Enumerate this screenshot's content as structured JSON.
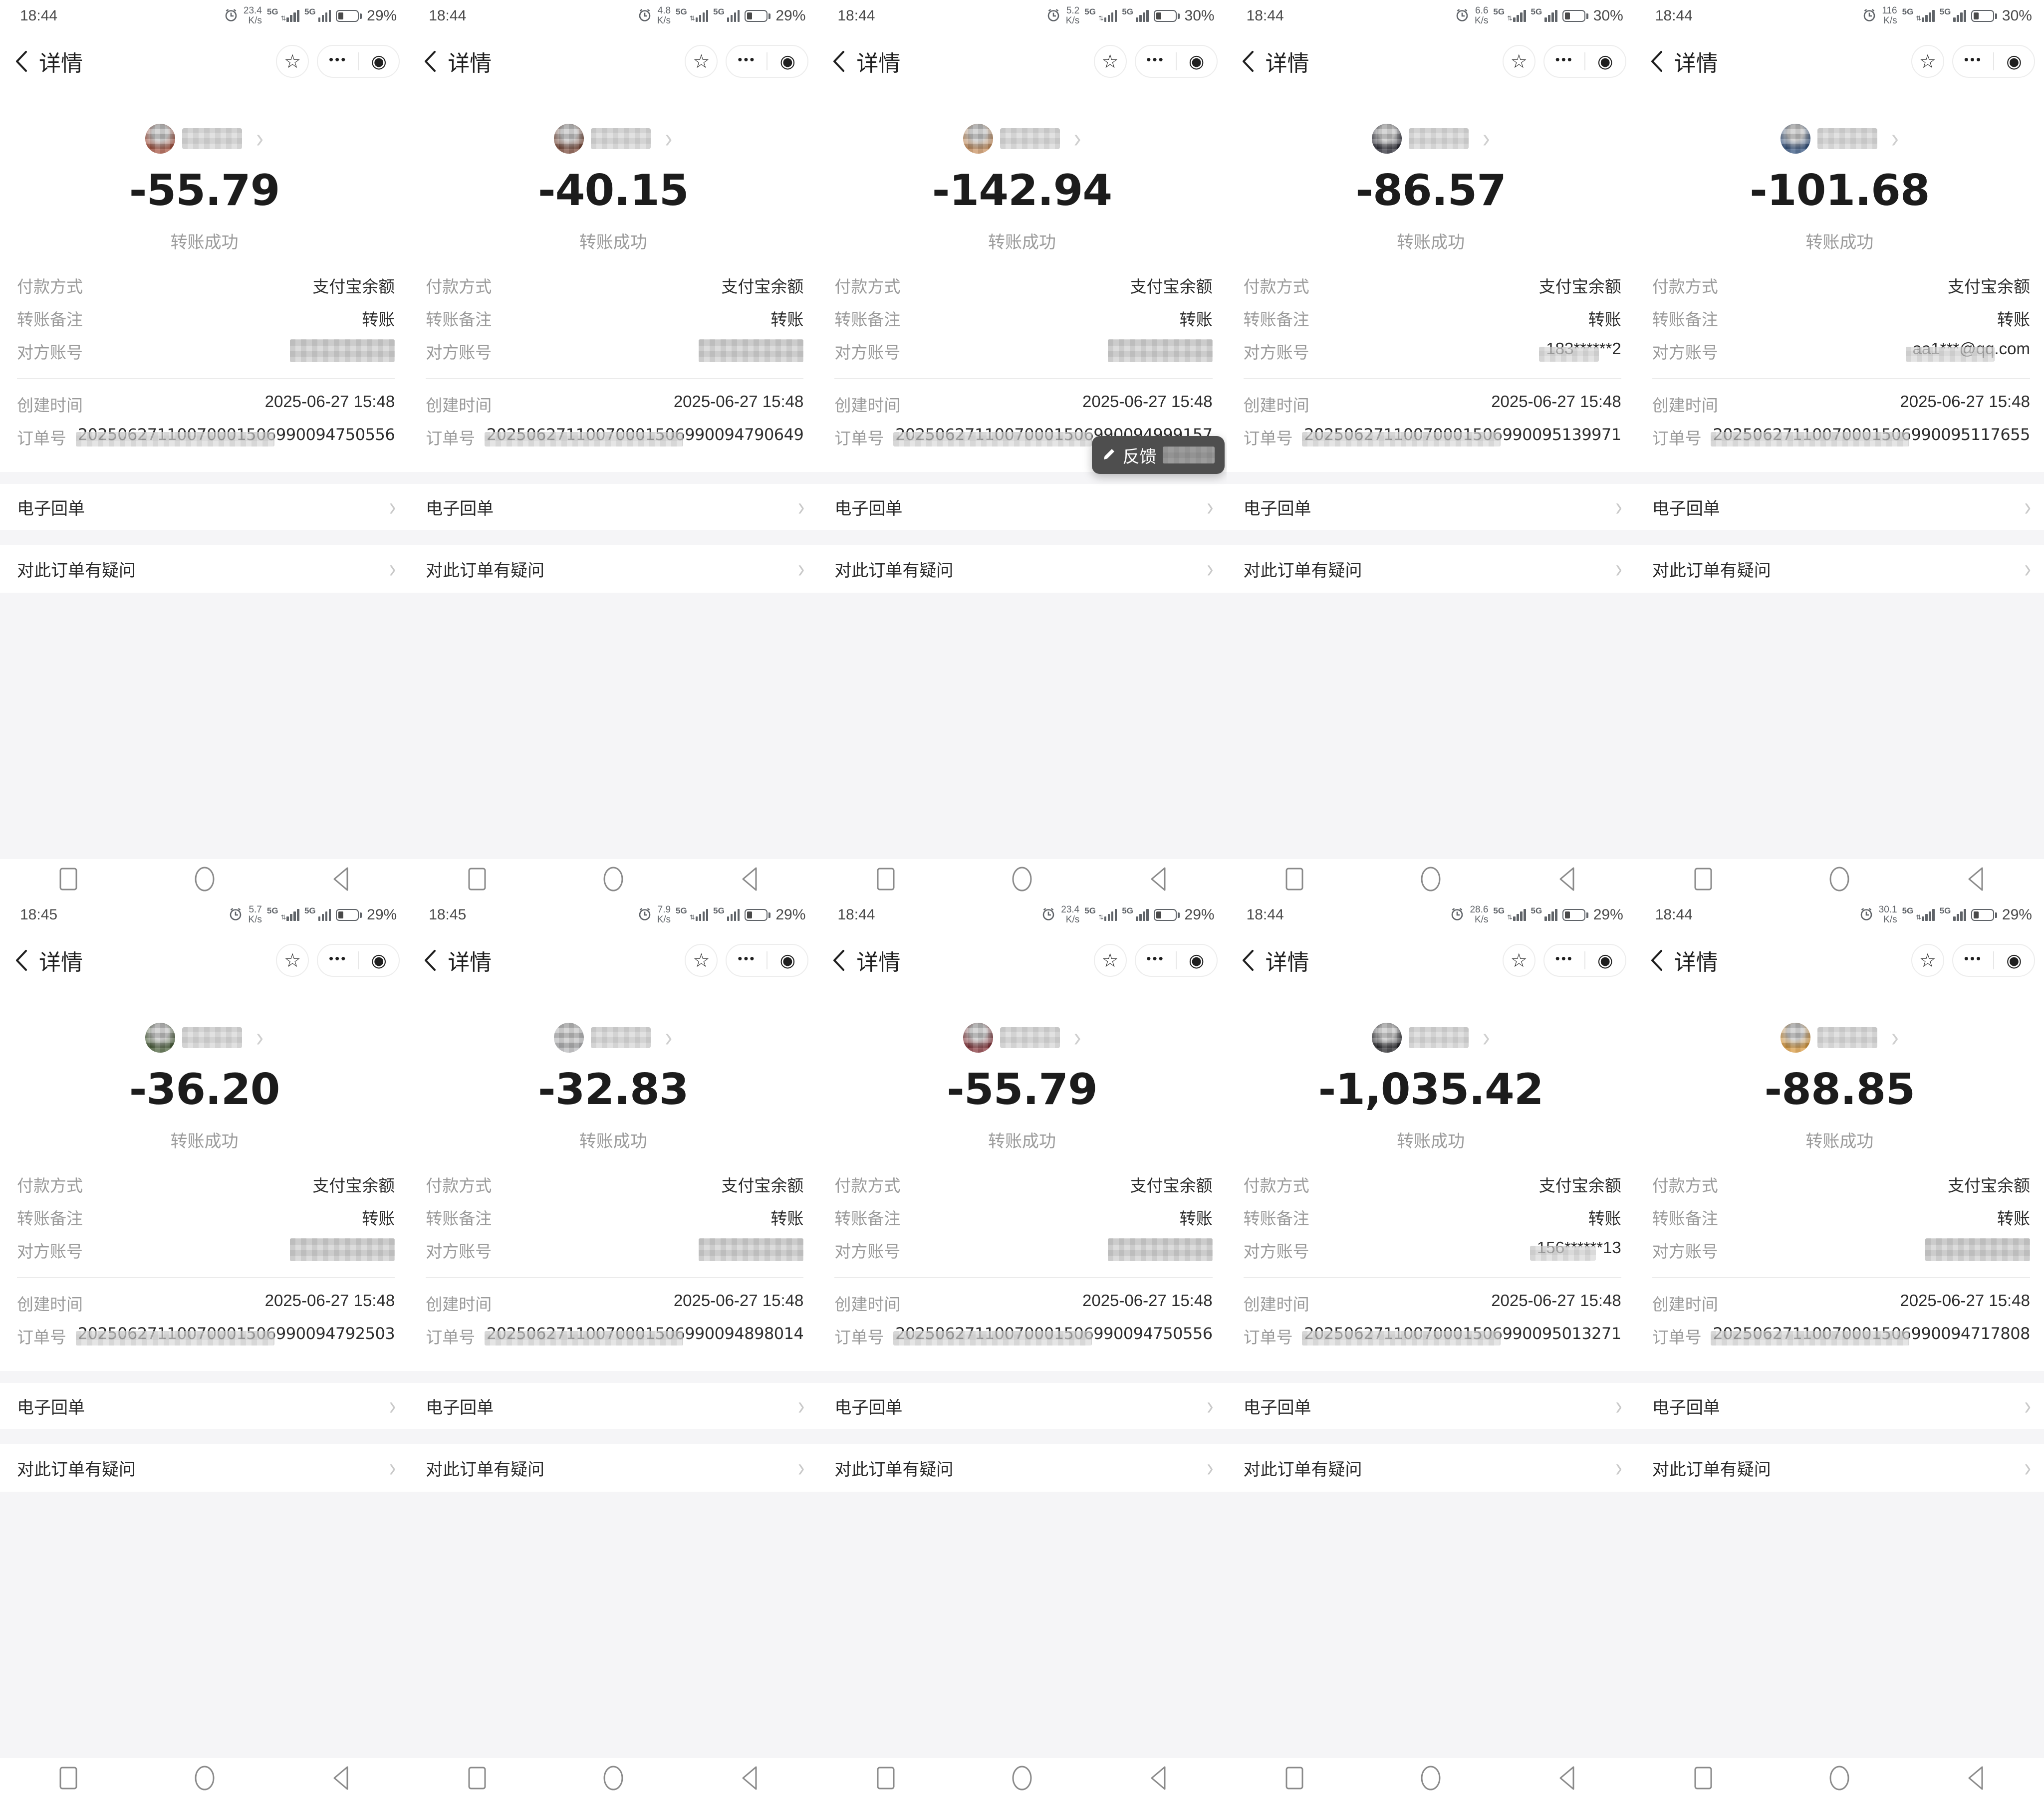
{
  "shared": {
    "nav": {
      "title": "详情"
    },
    "status": {
      "unit": "K/s",
      "network": "5G"
    },
    "capsule": {
      "star": "☆",
      "more": "•••",
      "target": "◉"
    },
    "transfer": {
      "success": "转账成功"
    },
    "labels": {
      "payment": "付款方式",
      "remark": "转账备注",
      "account": "对方账号",
      "created": "创建时间",
      "order": "订单号"
    },
    "values": {
      "payment": "支付宝余额",
      "remark": "转账",
      "created": "2025-06-27 15:48"
    },
    "rows": {
      "receipt": "电子回单",
      "question": "对此订单有疑问"
    },
    "chevron": "›",
    "toast": {
      "label": "反馈"
    }
  },
  "screens": [
    {
      "time": "18:44",
      "speed": "23.4",
      "battery": "29%",
      "amount": "-55.79",
      "account_text": "",
      "order_no": "20250627110070001506990094750556",
      "avatar_color": "#a5523f",
      "has_toast": false
    },
    {
      "time": "18:44",
      "speed": "4.8",
      "battery": "29%",
      "amount": "-40.15",
      "account_text": "",
      "order_no": "20250627110070001506990094790649",
      "avatar_color": "#7a4a3a",
      "has_toast": false
    },
    {
      "time": "18:44",
      "speed": "5.2",
      "battery": "30%",
      "amount": "-142.94",
      "account_text": "",
      "order_no": "20250627110070001506990094999157",
      "avatar_color": "#c8905f",
      "has_toast": true
    },
    {
      "time": "18:44",
      "speed": "6.6",
      "battery": "30%",
      "amount": "-86.57",
      "account_text": "183******2",
      "order_no": "20250627110070001506990095139971",
      "avatar_color": "#2e2e38",
      "has_toast": false
    },
    {
      "time": "18:44",
      "speed": "116",
      "battery": "30%",
      "amount": "-101.68",
      "account_text": "aa1***@qq.com",
      "order_no": "20250627110070001506990095117655",
      "avatar_color": "#33527e",
      "has_toast": false
    },
    {
      "time": "18:45",
      "speed": "5.7",
      "battery": "29%",
      "amount": "-36.20",
      "account_text": "",
      "order_no": "20250627110070001506990094792503",
      "avatar_color": "#4a5f3a",
      "has_toast": false
    },
    {
      "time": "18:45",
      "speed": "7.9",
      "battery": "29%",
      "amount": "-32.83",
      "account_text": "",
      "order_no": "20250627110070001506990094898014",
      "avatar_color": "#b9babc",
      "has_toast": false
    },
    {
      "time": "18:44",
      "speed": "23.4",
      "battery": "29%",
      "amount": "-55.79",
      "account_text": "",
      "order_no": "20250627110070001506990094750556",
      "avatar_color": "#84343a",
      "has_toast": false
    },
    {
      "time": "18:44",
      "speed": "28.6",
      "battery": "29%",
      "amount": "-1,035.42",
      "account_text": "156******13",
      "order_no": "20250627110070001506990095013271",
      "avatar_color": "#27272b",
      "has_toast": false
    },
    {
      "time": "18:44",
      "speed": "30.1",
      "battery": "29%",
      "amount": "-88.85",
      "account_text": "",
      "order_no": "20250627110070001506990094717808",
      "avatar_color": "#d99a3f",
      "has_toast": false
    }
  ]
}
